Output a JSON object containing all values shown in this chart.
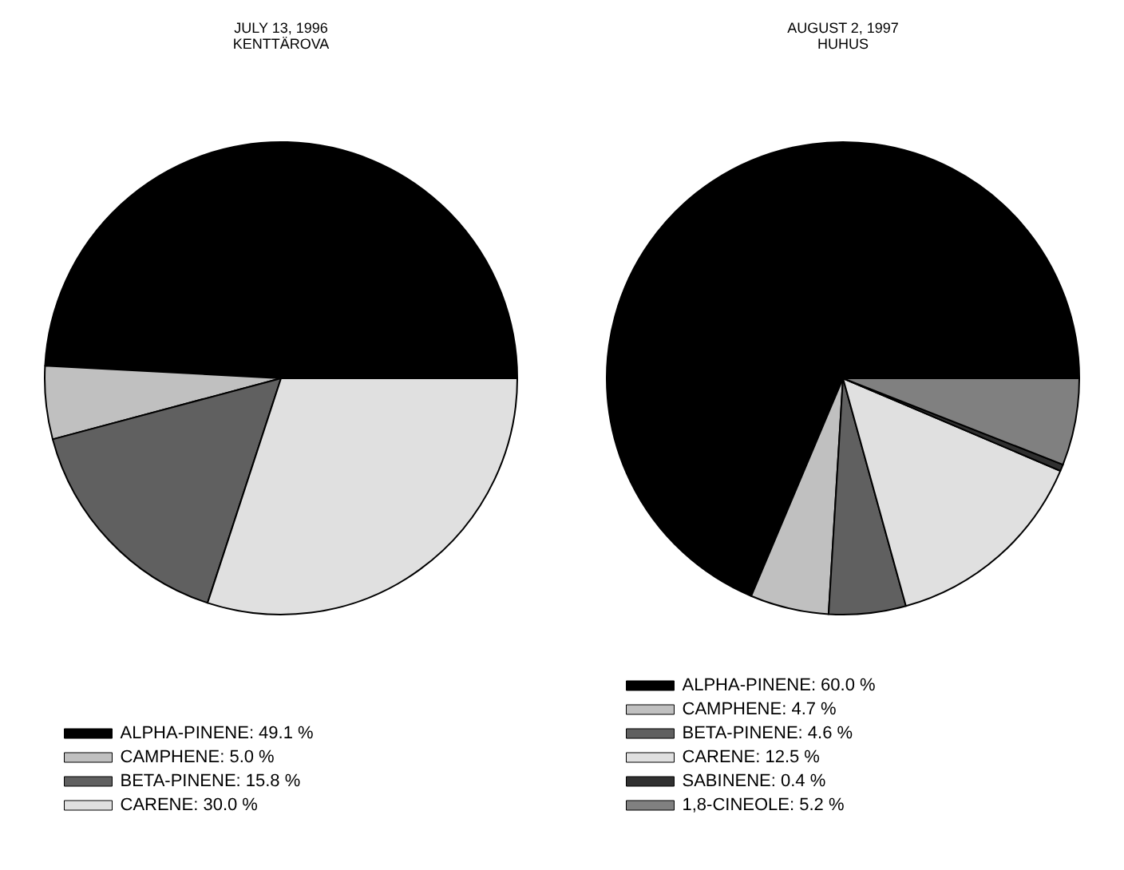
{
  "chart_data": [
    {
      "type": "pie",
      "title": "JULY 13, 1996",
      "subtitle": "KENTTÄROVA",
      "categories": [
        "ALPHA-PINENE",
        "CAMPHENE",
        "BETA-PINENE",
        "CARENE"
      ],
      "values": [
        49.1,
        5.0,
        15.8,
        30.0
      ],
      "value_labels": [
        "49.1 %",
        "5.0 %",
        "15.8 %",
        "30.0 %"
      ],
      "colors": [
        "#000000",
        "#c0c0c0",
        "#606060",
        "#e0e0e0"
      ],
      "legend": "bottom left"
    },
    {
      "type": "pie",
      "title": "AUGUST 2, 1997",
      "subtitle": "HUHUS",
      "categories": [
        "ALPHA-PINENE",
        "CAMPHENE",
        "BETA-PINENE",
        "CARENE",
        "SABINENE",
        "1,8-CINEOLE"
      ],
      "values": [
        60.0,
        4.7,
        4.6,
        12.5,
        0.4,
        5.2
      ],
      "value_labels": [
        "60.0 %",
        "4.7 %",
        "4.6 %",
        "12.5 %",
        "0.4 %",
        "5.2 %"
      ],
      "colors": [
        "#000000",
        "#c0c0c0",
        "#606060",
        "#e0e0e0",
        "#303030",
        "#808080"
      ],
      "legend": "bottom left"
    }
  ]
}
